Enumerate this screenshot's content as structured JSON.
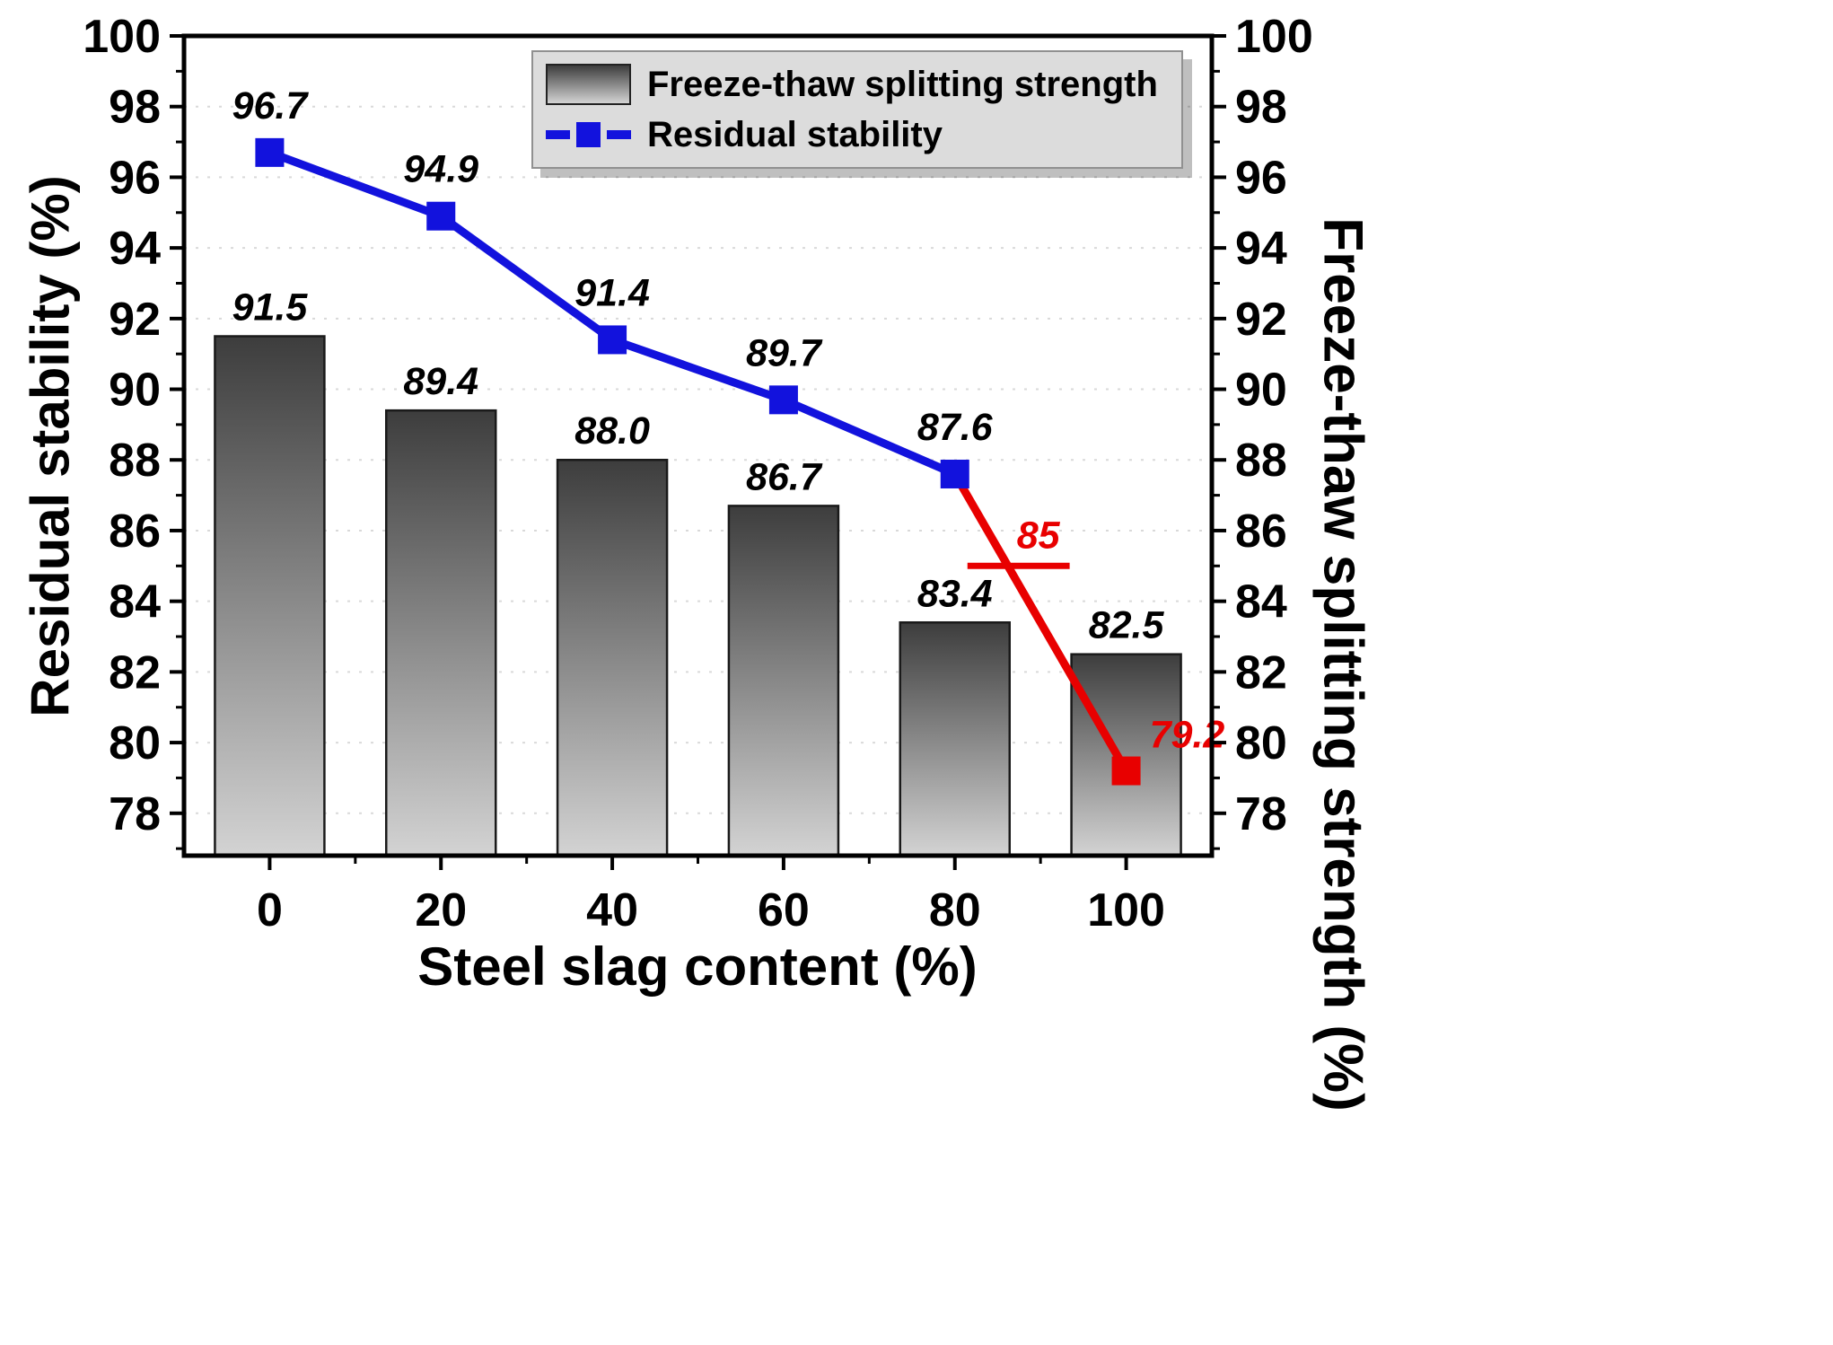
{
  "chart_data": {
    "type": "bar+line",
    "title": "",
    "xlabel": "Steel slag content (%)",
    "ylabel_left": "Residual stability (%)",
    "ylabel_right": "Freeze-thaw splitting strength (%)",
    "categories": [
      0,
      20,
      40,
      60,
      80,
      100
    ],
    "series": [
      {
        "name": "Freeze-thaw splitting strength",
        "type": "bar",
        "axis": "right",
        "values": [
          91.5,
          89.4,
          88.0,
          86.7,
          83.4,
          82.5
        ],
        "labels": [
          "91.5",
          "89.4",
          "88.0",
          "86.7",
          "83.4",
          "82.5"
        ]
      },
      {
        "name": "Residual stability",
        "type": "line",
        "axis": "left",
        "marker": "square",
        "values": [
          96.7,
          94.9,
          91.4,
          89.7,
          87.6,
          79.2
        ],
        "labels": [
          "96.7",
          "94.9",
          "91.4",
          "89.7",
          "87.6",
          "79.2"
        ],
        "label_colors": [
          "#000000",
          "#000000",
          "#000000",
          "#000000",
          "#000000",
          "#e80000"
        ],
        "marker_colors": [
          "#1212dd",
          "#1212dd",
          "#1212dd",
          "#1212dd",
          "#1212dd",
          "#e80000"
        ],
        "below_threshold_segment": "red"
      }
    ],
    "threshold": {
      "value": 85,
      "label": "85",
      "color": "#e80000"
    },
    "ylim": [
      76.8,
      100
    ],
    "yticks": [
      78,
      80,
      82,
      84,
      86,
      88,
      90,
      92,
      94,
      96,
      98,
      100
    ],
    "grid": "faint dotted horizontal",
    "legend_position": "top-center-inside"
  },
  "legend": {
    "items": [
      {
        "label": "Freeze-thaw splitting strength",
        "swatch": "bar-gradient"
      },
      {
        "label": "Residual stability",
        "swatch": "blue-dashed-line-with-square"
      }
    ]
  },
  "colors": {
    "bar_top": "#3d3d3d",
    "bar_bottom": "#d3d3d3",
    "bar_stroke": "#1a1a1a",
    "line_blue": "#1212dd",
    "accent_red": "#e80000",
    "legend_bg": "#dcdcdc",
    "grid": "#d9d9d9",
    "text": "#000000"
  }
}
